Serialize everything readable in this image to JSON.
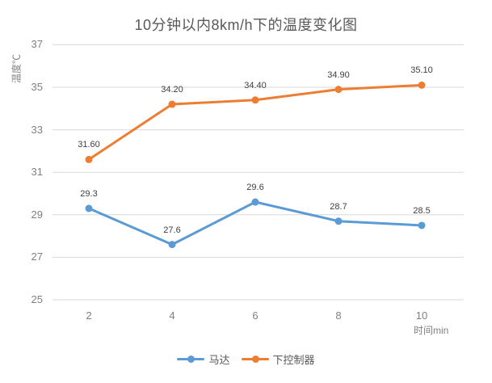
{
  "chart_data": {
    "type": "line",
    "title": "10分钟以内8km/h下的温度变化图",
    "xlabel": "时间min",
    "ylabel": "温度℃",
    "x": [
      2,
      4,
      6,
      8,
      10
    ],
    "yticks": [
      25,
      27,
      29,
      31,
      33,
      35,
      37
    ],
    "ylim": [
      25,
      37
    ],
    "grid": true,
    "legend_position": "bottom",
    "series": [
      {
        "name": "马达",
        "color": "#5B9BD5",
        "values": [
          29.3,
          27.6,
          29.6,
          28.7,
          28.5
        ],
        "labels": [
          "29.3",
          "27.6",
          "29.6",
          "28.7",
          "28.5"
        ]
      },
      {
        "name": "下控制器",
        "color": "#ED7D31",
        "values": [
          31.6,
          34.2,
          34.4,
          34.9,
          35.1
        ],
        "labels": [
          "31.60",
          "34.20",
          "34.40",
          "34.90",
          "35.10"
        ]
      }
    ]
  },
  "colors": {
    "background": "#FFFFFF",
    "grid": "#D9D9D9",
    "title_text": "#595959",
    "tick_text": "#808080",
    "data_label_text": "#404040",
    "legend_text": "#595959"
  }
}
